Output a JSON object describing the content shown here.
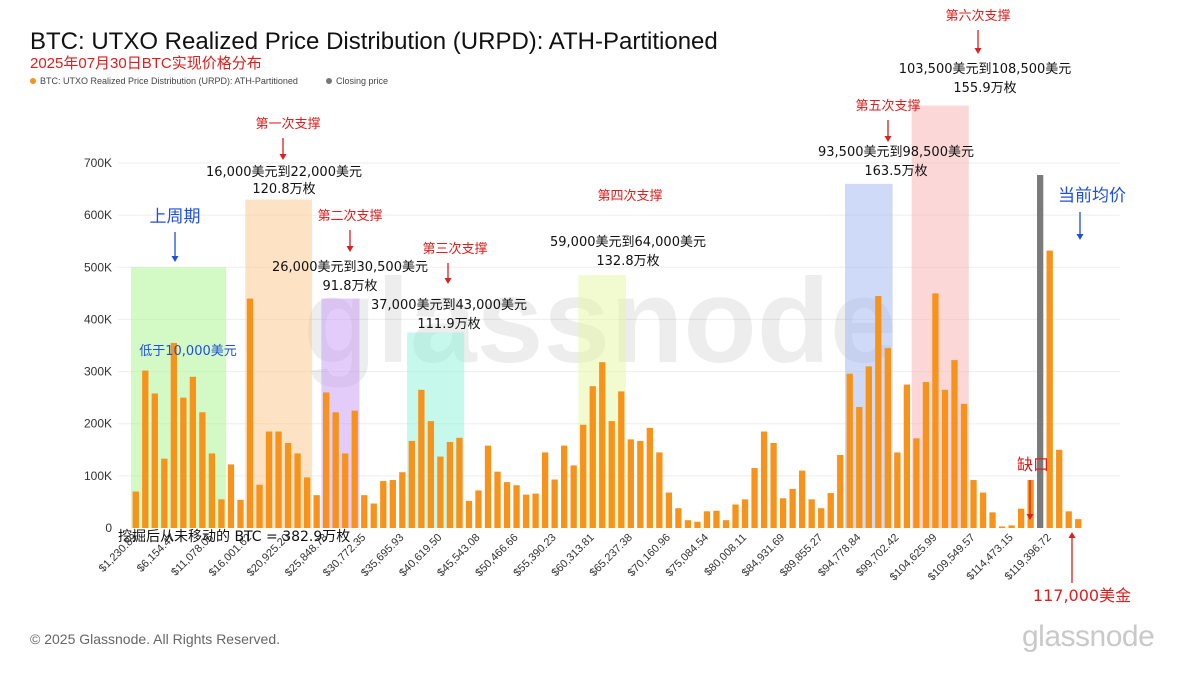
{
  "header": {
    "title": "BTC: UTXO Realized Price Distribution (URPD): ATH-Partitioned",
    "subtitle": "2025年07月30日BTC实现价格分布",
    "legend_series": "BTC: UTXO Realized Price Distribution (URPD): ATH-Partitioned",
    "legend_close": "Closing price"
  },
  "footer": {
    "copyright": "© 2025 Glassnode. All Rights Reserved.",
    "logo": "glassnode"
  },
  "colors": {
    "bar": "#f7931a",
    "bar_dark": "#7a7a7a",
    "red": "#e11d1d",
    "blue": "#1d4fe1",
    "grid": "#eeeeee"
  },
  "chart_data": {
    "type": "bar",
    "ylim": [
      0,
      700000
    ],
    "y_ticks": [
      "0",
      "100K",
      "200K",
      "300K",
      "400K",
      "500K",
      "600K",
      "700K"
    ],
    "x_tick_labels": [
      "$1,230.89",
      "$6,154.47",
      "$11,078.05",
      "$16,001.62",
      "$20,925.20",
      "$25,848.78",
      "$30,772.35",
      "$35,695.93",
      "$40,619.50",
      "$45,543.08",
      "$50,466.66",
      "$55,390.23",
      "$60,313.81",
      "$65,237.38",
      "$70,160.96",
      "$75,084.54",
      "$80,008.11",
      "$84,931.69",
      "$89,855.27",
      "$94,778.84",
      "$99,702.42",
      "$104,625.99",
      "$109,549.57",
      "$114,473.15",
      "$119,396.72"
    ],
    "values": [
      70000,
      302000,
      258000,
      133000,
      355000,
      250000,
      290000,
      222000,
      143000,
      55000,
      122000,
      54000,
      440000,
      83000,
      185000,
      185000,
      163000,
      143000,
      97000,
      63000,
      260000,
      222000,
      143000,
      225000,
      63000,
      47000,
      90000,
      92000,
      107000,
      167000,
      265000,
      205000,
      137000,
      165000,
      173000,
      52000,
      72000,
      158000,
      108000,
      88000,
      82000,
      64000,
      66000,
      145000,
      93000,
      158000,
      120000,
      198000,
      272000,
      318000,
      205000,
      262000,
      170000,
      167000,
      192000,
      145000,
      68000,
      38000,
      15000,
      12000,
      32000,
      33000,
      15000,
      45000,
      55000,
      115000,
      185000,
      163000,
      57000,
      75000,
      110000,
      55000,
      38000,
      67000,
      140000,
      296000,
      232000,
      310000,
      445000,
      345000,
      145000,
      275000,
      172000,
      280000,
      450000,
      265000,
      322000,
      238000,
      92000,
      68000,
      30000,
      3000,
      5000,
      37000,
      92000,
      677000,
      532000,
      150000,
      32000,
      17000
    ],
    "highlight_bar_index": 95,
    "series_names": [
      "BTC: UTXO Realized Price Distribution (URPD): ATH-Partitioned",
      "Closing price"
    ],
    "watermark": "glassnode",
    "regions": [
      {
        "name": "prev-cycle",
        "start": 0,
        "end": 9,
        "top_value": 500000,
        "color": "#a7f58a",
        "note": "低于10,000美元",
        "label": "上周期"
      },
      {
        "name": "support-1",
        "start": 12,
        "end": 18,
        "top_value": 630000,
        "color": "#fcc58a",
        "label": "第一次支撑",
        "range": "16,000美元到22,000美元",
        "amount": "120.8万枚"
      },
      {
        "name": "support-2",
        "start": 20,
        "end": 23,
        "top_value": 440000,
        "color": "#c89af5",
        "label": "第二次支撑",
        "range": "26,000美元到30,500美元",
        "amount": "91.8万枚"
      },
      {
        "name": "support-3",
        "start": 29,
        "end": 34,
        "top_value": 375000,
        "color": "#8df2d9",
        "label": "第三次支撑",
        "range": "37,000美元到43,000美元",
        "amount": "111.9万枚"
      },
      {
        "name": "support-4",
        "start": 47,
        "end": 51,
        "top_value": 485000,
        "color": "#e6f5a0",
        "label": "第四次支撑",
        "range": "59,000美元到64,000美元",
        "amount": "132.8万枚"
      },
      {
        "name": "support-5",
        "start": 75,
        "end": 79,
        "top_value": 660000,
        "color": "#9db6f2",
        "label": "第五次支撑",
        "range": "93,500美元到98,500美元",
        "amount": "163.5万枚"
      },
      {
        "name": "support-6",
        "start": 82,
        "end": 87,
        "top_value": 810000,
        "color": "#f9b0b0",
        "label": "第六次支撑",
        "range": "103,500美元到108,500美元",
        "amount": "155.9万枚"
      }
    ],
    "annotations": {
      "unmoved": "挖掘后从未移动的 BTC = 382.9万枚",
      "gap": "缺口",
      "current_avg": "当前均价",
      "price_117k": "117,000美金"
    }
  }
}
